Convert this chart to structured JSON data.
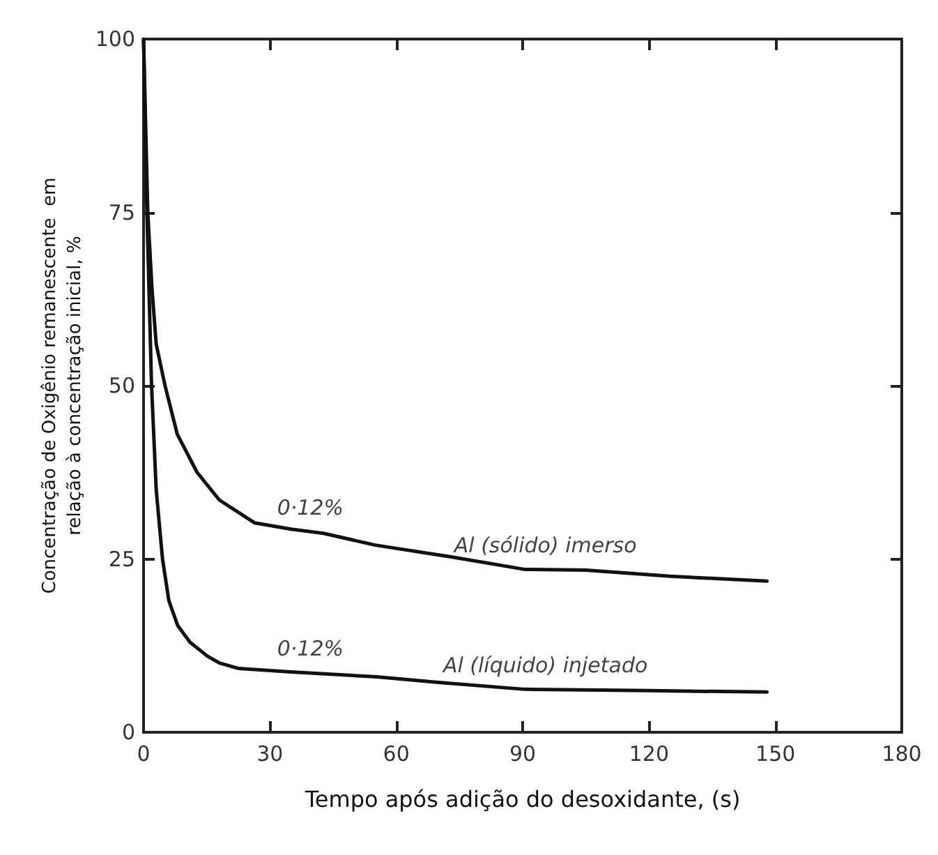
{
  "chart_data": {
    "type": "line",
    "xlabel": "Tempo após adição do desoxidante, (s)",
    "ylabel": "Concentração de Oxigênio remanescente  em\nrelação à concentração inicial, %",
    "xlim": [
      0,
      180
    ],
    "xticks": [
      0,
      30,
      60,
      90,
      120,
      150,
      180
    ],
    "ylim": [
      0,
      100
    ],
    "yticks": [
      0,
      25,
      50,
      75,
      100
    ],
    "grid": false,
    "marker": "none",
    "line_style": "solid",
    "series": [
      {
        "color": "#111111",
        "x": [
          0,
          1,
          2,
          3,
          5.1,
          8,
          12.7,
          18,
          26.4,
          35,
          42.7,
          55,
          73,
          90.4,
          105,
          125,
          148
        ],
        "values": [
          100,
          75,
          64,
          56,
          50,
          43,
          37.5,
          33.5,
          30.2,
          29.3,
          28.7,
          27,
          25.3,
          23.5,
          23.4,
          22.5,
          21.8
        ]
      },
      {
        "color": "#111111",
        "x": [
          0,
          0.8,
          1.9,
          3,
          4.5,
          6,
          8.1,
          11,
          15.1,
          18,
          22.6,
          35,
          55.3,
          70,
          90.4,
          120,
          148
        ],
        "values": [
          100,
          75,
          50,
          35,
          25,
          19,
          15.4,
          13,
          11,
          10,
          9.2,
          8.7,
          8,
          7.2,
          6.2,
          6,
          5.8
        ]
      }
    ],
    "annotations": [
      "0·12%",
      "Al (sólido) imerso",
      "0·12%",
      "Al (líquido) injetado"
    ]
  }
}
